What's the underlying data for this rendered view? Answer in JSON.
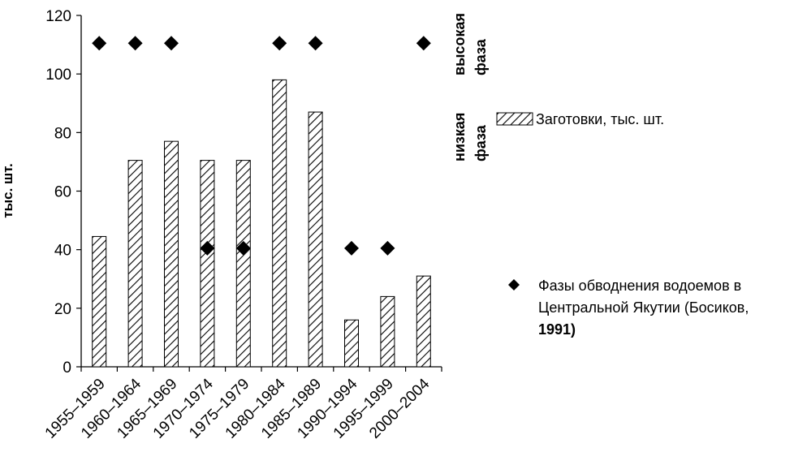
{
  "chart_data": {
    "type": "bar",
    "title": "",
    "xlabel": "",
    "ylabel": "тыс. шт.",
    "ylim": [
      0,
      120
    ],
    "yticks": [
      0,
      20,
      40,
      60,
      80,
      100,
      120
    ],
    "grid": false,
    "categories": [
      "1955–1959",
      "1960–1964",
      "1965–1969",
      "1970–1974",
      "1975–1979",
      "1980–1984",
      "1985–1989",
      "1990–1994",
      "1995–1999",
      "2000–2004"
    ],
    "series": [
      {
        "name": "Заготовки, тыс. шт.",
        "type": "bar",
        "pattern": "diagonal-hatch",
        "values": [
          44.5,
          70.5,
          77,
          70.5,
          70.5,
          98,
          87,
          16,
          24,
          31
        ]
      },
      {
        "name": "Фазы обводнения водоемов в Центральной Якутии (Босиков, 1991)",
        "type": "scatter",
        "marker": "diamond",
        "values": [
          110.5,
          110.5,
          110.5,
          40.5,
          40.5,
          110.5,
          110.5,
          40.5,
          40.5,
          110.5
        ]
      }
    ],
    "annotations": {
      "high_phase_line1": "высокая",
      "high_phase_line2": "фаза",
      "low_phase_line1": "низкая",
      "low_phase_line2": "фаза"
    },
    "legend": {
      "placement": "right",
      "bar_label": "Заготовки, тыс. шт.",
      "marker_label_line1": "Фазы обводнения водоемов в",
      "marker_label_line2": "Центральной Якутии (Босиков,",
      "marker_label_line3": "1991)"
    }
  }
}
